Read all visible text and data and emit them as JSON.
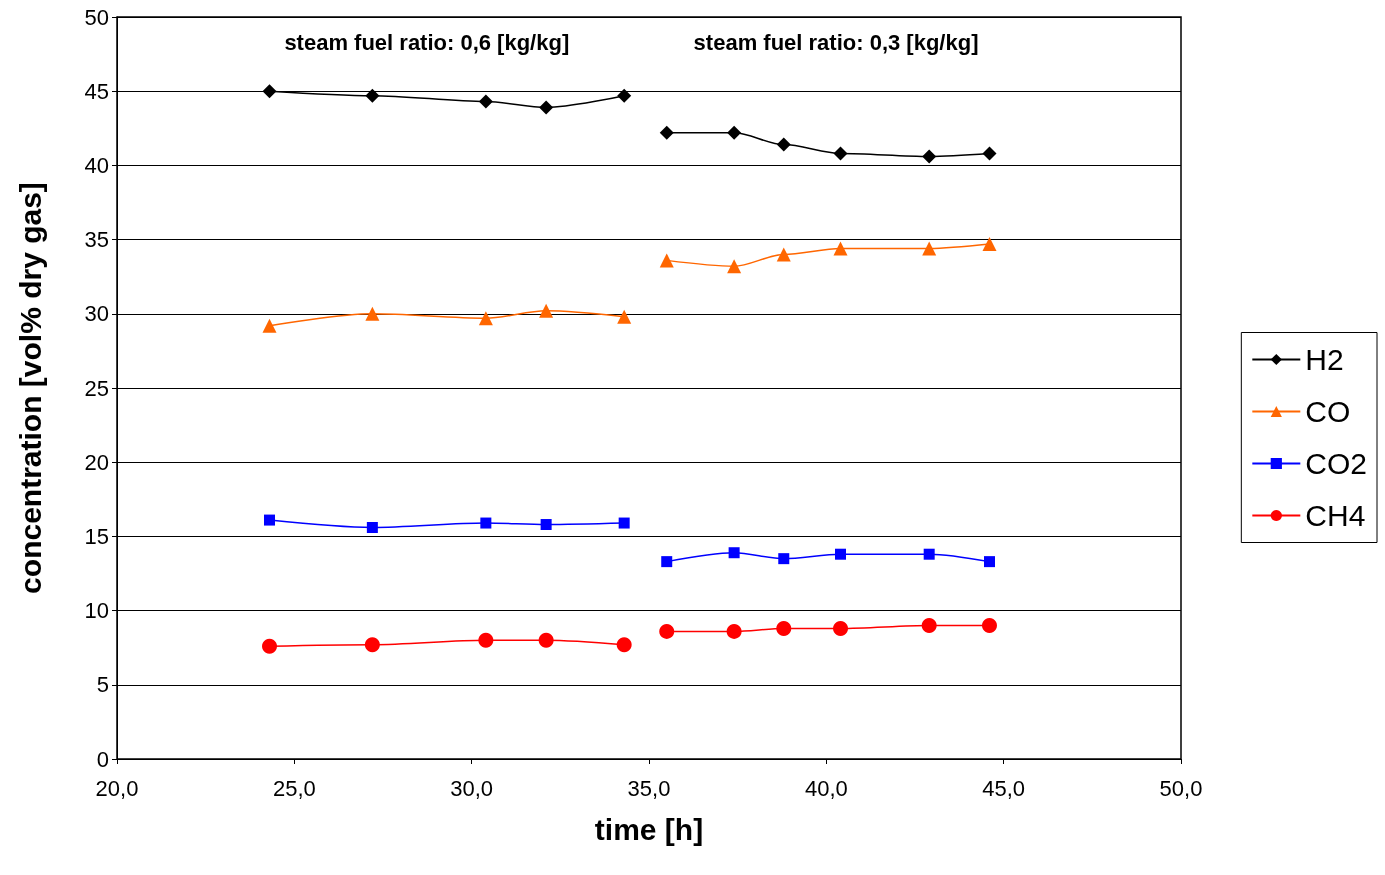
{
  "chart_data": {
    "type": "line",
    "xlabel": "time [h]",
    "ylabel": "concentration [vol% dry gas]",
    "annotations": [
      "steam fuel ratio: 0,6 [kg/kg]",
      "steam fuel ratio: 0,3 [kg/kg]"
    ],
    "xlim": [
      20,
      50
    ],
    "xticks": [
      {
        "value": 20,
        "label": "20,0"
      },
      {
        "value": 25,
        "label": "25,0"
      },
      {
        "value": 30,
        "label": "30,0"
      },
      {
        "value": 35,
        "label": "35,0"
      },
      {
        "value": 40,
        "label": "40,0"
      },
      {
        "value": 45,
        "label": "45,0"
      },
      {
        "value": 50,
        "label": "50,0"
      }
    ],
    "ylim": [
      0,
      50
    ],
    "yticks": [
      0,
      5,
      10,
      15,
      20,
      25,
      30,
      35,
      40,
      45,
      50
    ],
    "grid": "y",
    "legend": "right",
    "series": [
      {
        "name": "H2",
        "color": "#000000",
        "marker": "diamond",
        "x": [
          24.3,
          27.2,
          30.4,
          32.1,
          34.3
        ],
        "values": [
          45.0,
          44.7,
          44.3,
          43.9,
          44.7
        ]
      },
      {
        "color": "#000000",
        "marker": "diamond",
        "x": [
          35.5,
          37.4,
          38.8,
          40.4,
          42.9,
          44.6
        ],
        "values": [
          42.2,
          42.2,
          41.4,
          40.8,
          40.6,
          40.8
        ]
      },
      {
        "name": "CO",
        "color": "#ff6600",
        "marker": "triangle",
        "x": [
          24.3,
          27.2,
          30.4,
          32.1,
          34.3
        ],
        "values": [
          29.2,
          30.0,
          29.7,
          30.2,
          29.8
        ]
      },
      {
        "color": "#ff6600",
        "marker": "triangle",
        "x": [
          35.5,
          37.4,
          38.8,
          40.4,
          42.9,
          44.6
        ],
        "values": [
          33.6,
          33.2,
          34.0,
          34.4,
          34.4,
          34.7
        ]
      },
      {
        "name": "CO2",
        "color": "#0000ff",
        "marker": "square",
        "x": [
          24.3,
          27.2,
          30.4,
          32.1,
          34.3
        ],
        "values": [
          16.1,
          15.6,
          15.9,
          15.8,
          15.9
        ]
      },
      {
        "color": "#0000ff",
        "marker": "square",
        "x": [
          35.5,
          37.4,
          38.8,
          40.4,
          42.9,
          44.6
        ],
        "values": [
          13.3,
          13.9,
          13.5,
          13.8,
          13.8,
          13.3
        ]
      },
      {
        "name": "CH4",
        "color": "#ff0000",
        "marker": "circle",
        "x": [
          24.3,
          27.2,
          30.4,
          32.1,
          34.3
        ],
        "values": [
          7.6,
          7.7,
          8.0,
          8.0,
          7.7
        ]
      },
      {
        "color": "#ff0000",
        "marker": "circle",
        "x": [
          35.5,
          37.4,
          38.8,
          40.4,
          42.9,
          44.6
        ],
        "values": [
          8.6,
          8.6,
          8.8,
          8.8,
          9.0,
          9.0
        ]
      }
    ]
  }
}
